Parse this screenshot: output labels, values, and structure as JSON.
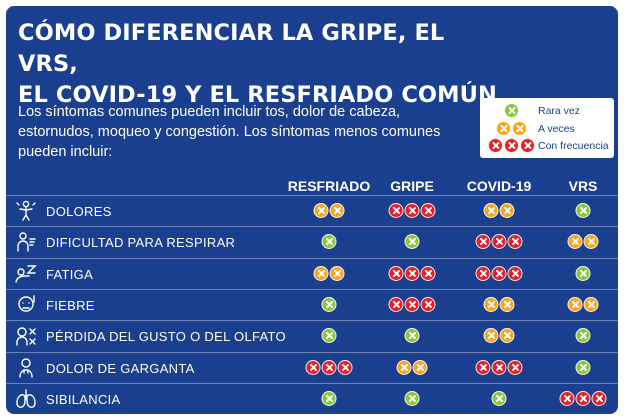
{
  "title": {
    "line1": "CÓMO DIFERENCIAR LA GRIPE, EL VRS,",
    "line2": "EL COVID-19 Y EL RESFRIADO COMÚN"
  },
  "intro": "Los síntomas comunes pueden incluir tos, dolor de cabeza, estornudos, moqueo y congestión. Los síntomas menos comunes pueden incluir:",
  "legend": [
    {
      "label": "Rara vez",
      "level": 1
    },
    {
      "label": "A veces",
      "level": 2
    },
    {
      "label": "Con frecuencia",
      "level": 3
    }
  ],
  "columns": [
    "RESFRIADO",
    "GRIPE",
    "COVID-19",
    "VRS"
  ],
  "level_colors": {
    "1": "#8cc63f",
    "2": "#f5a623",
    "3": "#e8202a"
  },
  "rows": [
    {
      "label": "DOLORES",
      "icon": "body-aches-icon",
      "levels": [
        2,
        3,
        2,
        1
      ]
    },
    {
      "label": "DIFICULTAD PARA RESPIRAR",
      "icon": "breathing-difficulty-icon",
      "levels": [
        1,
        1,
        3,
        2
      ]
    },
    {
      "label": "FATIGA",
      "icon": "fatigue-icon",
      "levels": [
        2,
        3,
        3,
        1
      ]
    },
    {
      "label": "FIEBRE",
      "icon": "fever-icon",
      "levels": [
        1,
        3,
        2,
        2
      ]
    },
    {
      "label": "PÉRDIDA DEL GUSTO O DEL OLFATO",
      "icon": "taste-smell-icon",
      "levels": [
        1,
        1,
        2,
        1
      ]
    },
    {
      "label": "DOLOR DE GARGANTA",
      "icon": "sore-throat-icon",
      "levels": [
        3,
        2,
        3,
        1
      ]
    },
    {
      "label": "SIBILANCIA",
      "icon": "lungs-icon",
      "levels": [
        1,
        1,
        1,
        3
      ]
    }
  ]
}
